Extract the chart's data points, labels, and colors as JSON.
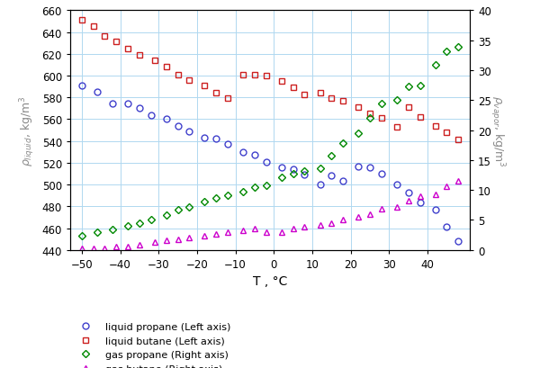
{
  "xlabel": "T , °C",
  "ylabel_left": "ρliquid, kg/m³",
  "ylabel_right": "ρvapor, kg/m³",
  "liq_propane_T": [
    -50,
    -46,
    -42,
    -38,
    -35,
    -32,
    -28,
    -25,
    -22,
    -18,
    -15,
    -12,
    -8,
    -5,
    -2,
    2,
    5,
    8,
    12,
    15,
    18,
    22,
    25,
    28,
    32,
    35,
    38,
    42,
    45,
    48
  ],
  "liq_propane_rho": [
    591,
    585,
    574,
    574,
    570,
    564,
    560,
    554,
    549,
    543,
    542,
    537,
    530,
    527,
    521,
    516,
    514,
    509,
    500,
    508,
    503,
    517,
    516,
    510,
    500,
    493,
    484,
    477,
    461,
    448
  ],
  "liq_butane_T": [
    -50,
    -47,
    -44,
    -41,
    -38,
    -35,
    -31,
    -28,
    -25,
    -22,
    -18,
    -15,
    -12,
    -8,
    -5,
    -2,
    2,
    5,
    8,
    12,
    15,
    18,
    22,
    25,
    28,
    32,
    35,
    38,
    42,
    45,
    48
  ],
  "liq_butane_rho": [
    651,
    645,
    636,
    631,
    625,
    619,
    614,
    608,
    601,
    596,
    591,
    584,
    579,
    601,
    601,
    600,
    595,
    589,
    583,
    584,
    579,
    577,
    571,
    565,
    561,
    553,
    571,
    562,
    554,
    548,
    541
  ],
  "gas_propane_T": [
    -50,
    -46,
    -42,
    -38,
    -35,
    -32,
    -28,
    -25,
    -22,
    -18,
    -15,
    -12,
    -8,
    -5,
    -2,
    2,
    5,
    8,
    12,
    15,
    18,
    22,
    25,
    28,
    32,
    35,
    38,
    42,
    45,
    48
  ],
  "gas_propane_rho": [
    2.4,
    2.9,
    3.4,
    4.0,
    4.5,
    5.1,
    5.8,
    6.7,
    7.2,
    8.0,
    8.7,
    9.1,
    9.7,
    10.5,
    10.8,
    12.2,
    12.7,
    13.2,
    13.6,
    15.7,
    17.9,
    19.5,
    22.1,
    24.5,
    25.0,
    27.3,
    27.5,
    30.9,
    33.2,
    33.9
  ],
  "gas_butane_T": [
    -50,
    -47,
    -44,
    -41,
    -38,
    -35,
    -31,
    -28,
    -25,
    -22,
    -18,
    -15,
    -12,
    -8,
    -5,
    -2,
    2,
    5,
    8,
    12,
    15,
    18,
    22,
    25,
    28,
    32,
    35,
    38,
    42,
    45,
    48
  ],
  "gas_butane_rho": [
    0.2,
    0.2,
    0.2,
    0.5,
    0.6,
    0.9,
    1.3,
    1.6,
    1.8,
    2.0,
    2.4,
    2.6,
    3.0,
    3.2,
    3.5,
    2.9,
    3.0,
    3.5,
    3.9,
    4.2,
    4.4,
    5.0,
    5.5,
    5.9,
    6.9,
    7.2,
    8.2,
    9.0,
    9.3,
    10.7,
    11.5
  ],
  "color_liq_propane": "#4040cc",
  "color_liq_butane": "#cc2020",
  "color_gas_propane": "#008800",
  "color_gas_butane": "#cc00cc",
  "xlim": [
    -53,
    51
  ],
  "ylim_left": [
    440,
    660
  ],
  "ylim_right": [
    0,
    40
  ],
  "yticks_left": [
    440,
    460,
    480,
    500,
    520,
    540,
    560,
    580,
    600,
    620,
    640,
    660
  ],
  "yticks_right": [
    0,
    5,
    10,
    15,
    20,
    25,
    30,
    35,
    40
  ],
  "xticks": [
    -50,
    -40,
    -30,
    -20,
    -10,
    0,
    10,
    20,
    30,
    40
  ]
}
